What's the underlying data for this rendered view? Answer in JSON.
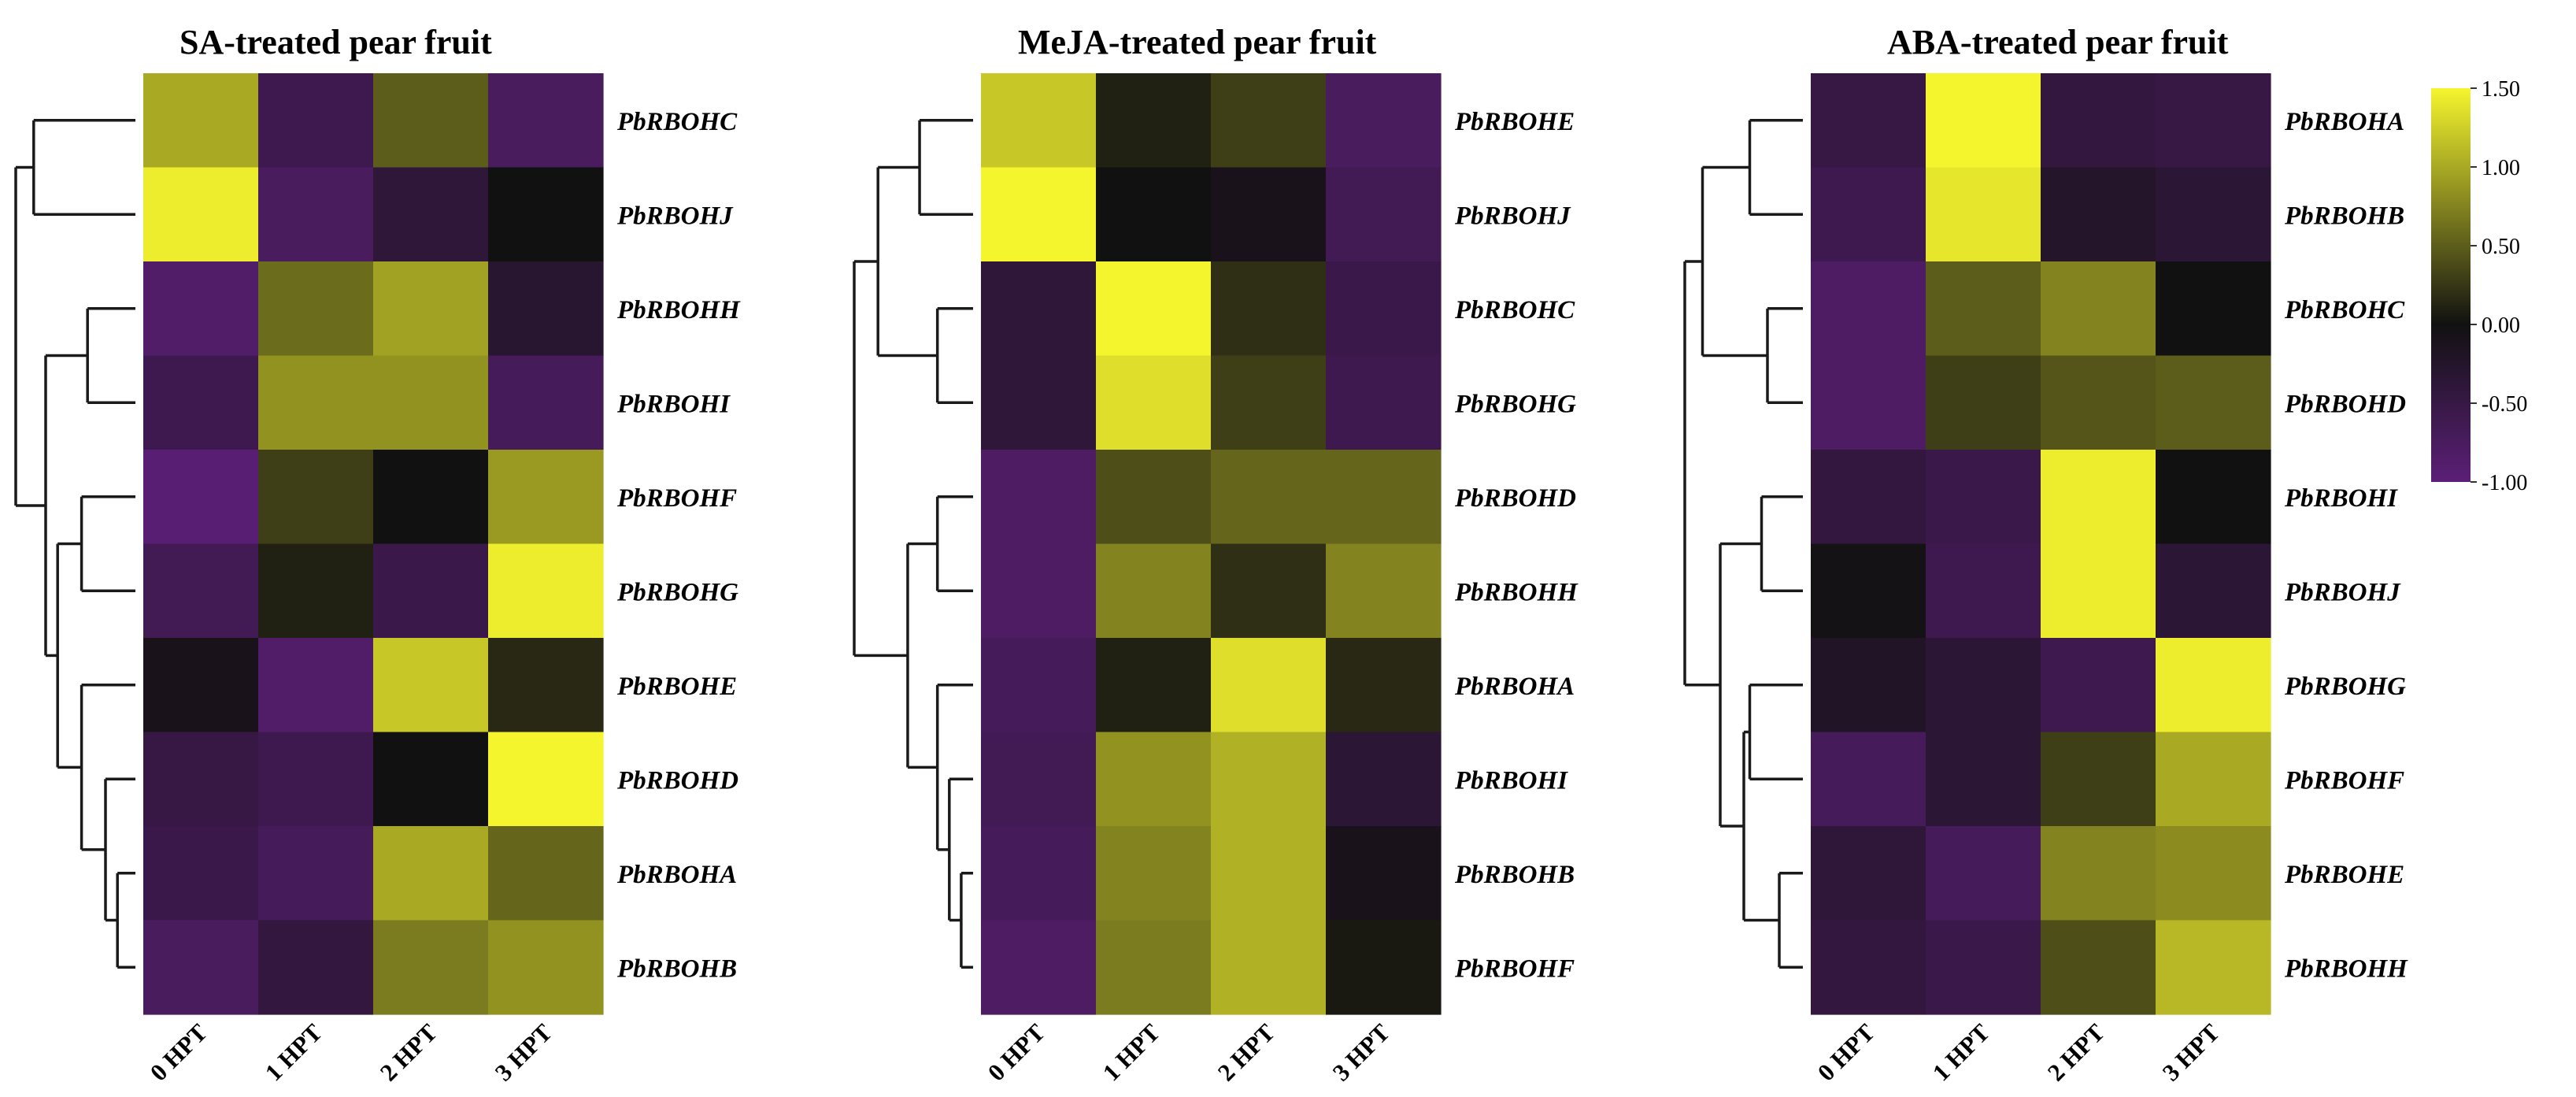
{
  "chart_data": [
    {
      "type": "heatmap",
      "title": "SA-treated pear fruit",
      "columns": [
        "0 HPT",
        "1 HPT",
        "2 HPT",
        "3 HPT"
      ],
      "rows": [
        "PbRBOHC",
        "PbRBOHJ",
        "PbRBOHH",
        "PbRBOHI",
        "PbRBOHF",
        "PbRBOHG",
        "PbRBOHE",
        "PbRBOHD",
        "PbRBOHA",
        "PbRBOHB"
      ],
      "values": [
        [
          1.0,
          -0.6,
          0.5,
          -0.75
        ],
        [
          1.45,
          -0.75,
          -0.4,
          0.0
        ],
        [
          -0.85,
          0.6,
          0.95,
          -0.3
        ],
        [
          -0.6,
          0.85,
          0.85,
          -0.7
        ],
        [
          -0.95,
          0.3,
          0.0,
          0.9
        ],
        [
          -0.65,
          0.1,
          -0.55,
          1.45
        ],
        [
          -0.1,
          -0.85,
          1.2,
          0.15
        ],
        [
          -0.5,
          -0.6,
          0.0,
          1.5
        ],
        [
          -0.55,
          -0.7,
          1.0,
          0.55
        ],
        [
          -0.75,
          -0.45,
          0.7,
          0.85
        ]
      ],
      "dendrogram": {
        "root": {
          "c": [
            {
              "c": [
                0,
                1
              ],
              "h": 0.85
            },
            {
              "c": [
                {
                  "c": [
                    2,
                    3
                  ],
                  "h": 0.4
                },
                {
                  "c": [
                    {
                      "c": [
                        4,
                        5
                      ],
                      "h": 0.45
                    },
                    {
                      "c": [
                        6,
                        {
                          "c": [
                            7,
                            {
                              "c": [
                                8,
                                9
                              ],
                              "h": 0.15
                            }
                          ],
                          "h": 0.25
                        }
                      ],
                      "h": 0.45
                    }
                  ],
                  "h": 0.65
                }
              ],
              "h": 0.75
            }
          ],
          "h": 1.0
        }
      }
    },
    {
      "type": "heatmap",
      "title": "MeJA-treated pear fruit",
      "columns": [
        "0 HPT",
        "1 HPT",
        "2 HPT",
        "3 HPT"
      ],
      "rows": [
        "PbRBOHE",
        "PbRBOHJ",
        "PbRBOHC",
        "PbRBOHG",
        "PbRBOHD",
        "PbRBOHH",
        "PbRBOHA",
        "PbRBOHI",
        "PbRBOHB",
        "PbRBOHF"
      ],
      "values": [
        [
          1.2,
          0.1,
          0.3,
          -0.75
        ],
        [
          1.5,
          0.0,
          -0.1,
          -0.65
        ],
        [
          -0.4,
          1.55,
          0.2,
          -0.55
        ],
        [
          -0.4,
          1.35,
          0.3,
          -0.6
        ],
        [
          -0.8,
          0.4,
          0.55,
          0.55
        ],
        [
          -0.8,
          0.75,
          0.2,
          0.75
        ],
        [
          -0.7,
          0.1,
          1.35,
          0.15
        ],
        [
          -0.65,
          0.85,
          1.05,
          -0.35
        ],
        [
          -0.7,
          0.75,
          1.05,
          -0.1
        ],
        [
          -0.8,
          0.7,
          1.05,
          0.05
        ]
      ],
      "dendrogram": {
        "root": {
          "c": [
            {
              "c": [
                {
                  "c": [
                    0,
                    1
                  ],
                  "h": 0.45
                },
                {
                  "c": [
                    2,
                    3
                  ],
                  "h": 0.3
                }
              ],
              "h": 0.8
            },
            {
              "c": [
                {
                  "c": [
                    4,
                    5
                  ],
                  "h": 0.3
                },
                {
                  "c": [
                    6,
                    {
                      "c": [
                        7,
                        {
                          "c": [
                            8,
                            9
                          ],
                          "h": 0.1
                        }
                      ],
                      "h": 0.2
                    }
                  ],
                  "h": 0.3
                }
              ],
              "h": 0.55
            }
          ],
          "h": 1.0
        }
      }
    },
    {
      "type": "heatmap",
      "title": "ABA-treated pear fruit",
      "columns": [
        "0 HPT",
        "1 HPT",
        "2 HPT",
        "3 HPT"
      ],
      "rows": [
        "PbRBOHA",
        "PbRBOHB",
        "PbRBOHC",
        "PbRBOHD",
        "PbRBOHI",
        "PbRBOHJ",
        "PbRBOHG",
        "PbRBOHF",
        "PbRBOHE",
        "PbRBOHH"
      ],
      "values": [
        [
          -0.5,
          1.5,
          -0.45,
          -0.5
        ],
        [
          -0.6,
          1.4,
          -0.25,
          -0.35
        ],
        [
          -0.8,
          0.5,
          0.75,
          0.0
        ],
        [
          -0.8,
          0.3,
          0.45,
          0.5
        ],
        [
          -0.45,
          -0.55,
          1.45,
          0.0
        ],
        [
          -0.05,
          -0.6,
          1.45,
          -0.35
        ],
        [
          -0.2,
          -0.35,
          -0.6,
          1.45
        ],
        [
          -0.7,
          -0.35,
          0.3,
          1.0
        ],
        [
          -0.4,
          -0.7,
          0.75,
          0.8
        ],
        [
          -0.45,
          -0.55,
          0.4,
          1.1
        ]
      ],
      "dendrogram": {
        "root": {
          "c": [
            {
              "c": [
                {
                  "c": [
                    0,
                    1
                  ],
                  "h": 0.45
                },
                {
                  "c": [
                    2,
                    3
                  ],
                  "h": 0.3
                }
              ],
              "h": 0.85
            },
            {
              "c": [
                {
                  "c": [
                    4,
                    5
                  ],
                  "h": 0.35
                },
                {
                  "c": [
                    {
                      "c": [
                        6,
                        7
                      ],
                      "h": 0.45
                    },
                    {
                      "c": [
                        8,
                        9
                      ],
                      "h": 0.2
                    }
                  ],
                  "h": 0.5
                }
              ],
              "h": 0.7
            }
          ],
          "h": 1.0
        }
      }
    }
  ],
  "legend": {
    "ticks": [
      "1.50",
      "1.00",
      "0.50",
      "0.00",
      "-0.50",
      "-1.00"
    ],
    "tick_values": [
      1.5,
      1.0,
      0.5,
      0.0,
      -0.5,
      -1.0
    ],
    "range": [
      -1.0,
      1.5
    ]
  },
  "colors": {
    "low": "#5c1f78",
    "mid": "#111111",
    "high": "#f5f52e",
    "line": "#1a1a1a"
  }
}
